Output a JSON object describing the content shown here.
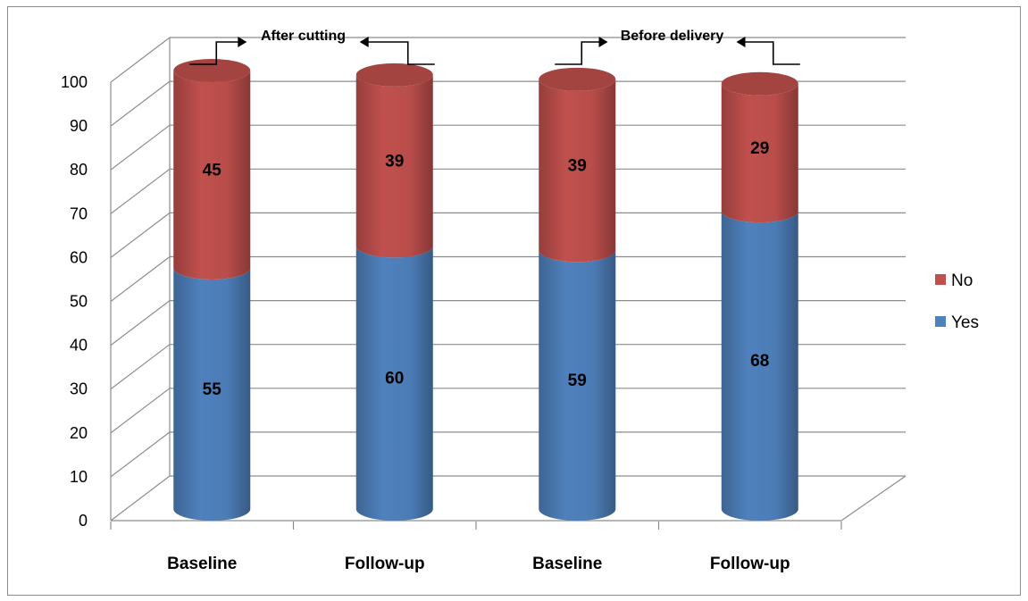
{
  "chart_data": {
    "type": "bar",
    "stacked": true,
    "three_d": true,
    "categories": [
      "Baseline",
      "Follow-up",
      "Baseline",
      "Follow-up"
    ],
    "series": [
      {
        "name": "Yes",
        "values": [
          55,
          60,
          59,
          68
        ],
        "color": "#4F81BD"
      },
      {
        "name": "No",
        "values": [
          45,
          39,
          39,
          29
        ],
        "color": "#C0504D"
      }
    ],
    "ylim": [
      0,
      100
    ],
    "yticks": [
      0,
      10,
      20,
      30,
      40,
      50,
      60,
      70,
      80,
      90,
      100
    ],
    "grid": true,
    "legend": "right",
    "annotations": [
      {
        "text": "After cutting",
        "groups": [
          0,
          1
        ]
      },
      {
        "text": "Before delivery",
        "groups": [
          2,
          3
        ]
      }
    ]
  }
}
